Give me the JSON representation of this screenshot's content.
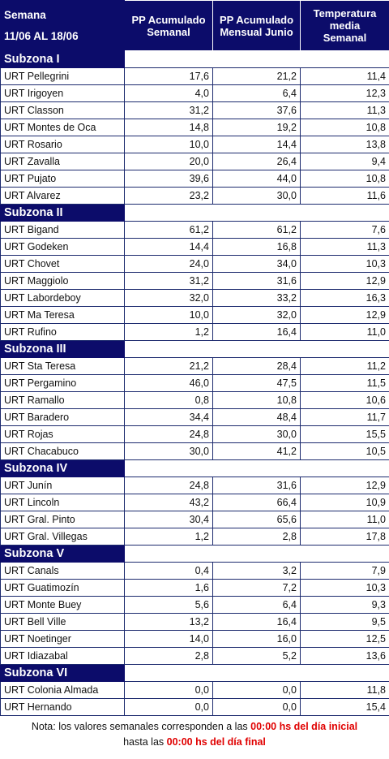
{
  "header": {
    "week_label": "Semana",
    "period": "11/06 AL 18/06",
    "columns": [
      "PP Acumulado Semanal",
      "PP Acumulado Mensual Junio",
      "Temperatura media Semanal"
    ]
  },
  "zones": [
    {
      "name": "Subzona I",
      "rows": [
        [
          "URT Pellegrini",
          "17,6",
          "21,2",
          "11,4"
        ],
        [
          "URT Irigoyen",
          "4,0",
          "6,4",
          "12,3"
        ],
        [
          "URT Classon",
          "31,2",
          "37,6",
          "11,3"
        ],
        [
          "URT Montes de Oca",
          "14,8",
          "19,2",
          "10,8"
        ],
        [
          "URT Rosario",
          "10,0",
          "14,4",
          "13,8"
        ],
        [
          "URT Zavalla",
          "20,0",
          "26,4",
          "9,4"
        ],
        [
          "URT Pujato",
          "39,6",
          "44,0",
          "10,8"
        ],
        [
          "URT Alvarez",
          "23,2",
          "30,0",
          "11,6"
        ]
      ]
    },
    {
      "name": "Subzona II",
      "rows": [
        [
          "URT Bigand",
          "61,2",
          "61,2",
          "7,6"
        ],
        [
          "URT Godeken",
          "14,4",
          "16,8",
          "11,3"
        ],
        [
          "URT Chovet",
          "24,0",
          "34,0",
          "10,3"
        ],
        [
          "URT Maggiolo",
          "31,2",
          "31,6",
          "12,9"
        ],
        [
          "URT Labordeboy",
          "32,0",
          "33,2",
          "16,3"
        ],
        [
          "URT Ma Teresa",
          "10,0",
          "32,0",
          "12,9"
        ],
        [
          "URT Rufino",
          "1,2",
          "16,4",
          "11,0"
        ]
      ]
    },
    {
      "name": "Subzona III",
      "rows": [
        [
          "URT Sta Teresa",
          "21,2",
          "28,4",
          "11,2"
        ],
        [
          "URT Pergamino",
          "46,0",
          "47,5",
          "11,5"
        ],
        [
          "URT Ramallo",
          "0,8",
          "10,8",
          "10,6"
        ],
        [
          "URT Baradero",
          "34,4",
          "48,4",
          "11,7"
        ],
        [
          "URT Rojas",
          "24,8",
          "30,0",
          "15,5"
        ],
        [
          "URT Chacabuco",
          "30,0",
          "41,2",
          "10,5"
        ]
      ]
    },
    {
      "name": "Subzona IV",
      "rows": [
        [
          "URT Junín",
          "24,8",
          "31,6",
          "12,9"
        ],
        [
          "URT Lincoln",
          "43,2",
          "66,4",
          "10,9"
        ],
        [
          "URT Gral. Pinto",
          "30,4",
          "65,6",
          "11,0"
        ],
        [
          "URT Gral. Villegas",
          "1,2",
          "2,8",
          "17,8"
        ]
      ]
    },
    {
      "name": "Subzona V",
      "rows": [
        [
          "URT Canals",
          "0,4",
          "3,2",
          "7,9"
        ],
        [
          "URT Guatimozín",
          "1,6",
          "7,2",
          "10,3"
        ],
        [
          "URT Monte Buey",
          "5,6",
          "6,4",
          "9,3"
        ],
        [
          "URT Bell Ville",
          "13,2",
          "16,4",
          "9,5"
        ],
        [
          "URT Noetinger",
          "14,0",
          "16,0",
          "12,5"
        ],
        [
          "URT Idiazabal",
          "2,8",
          "5,2",
          "13,6"
        ]
      ]
    },
    {
      "name": "Subzona VI",
      "rows": [
        [
          "URT Colonia Almada",
          "0,0",
          "0,0",
          "11,8"
        ],
        [
          "URT Hernando",
          "0,0",
          "0,0",
          "15,4"
        ]
      ]
    }
  ],
  "note": {
    "line1": "Nota: los valores semanales corresponden a las",
    "line1_highlight": "00:00 hs del día inicial",
    "line2": "hasta las",
    "line2_highlight": "00:00 hs del día final"
  }
}
